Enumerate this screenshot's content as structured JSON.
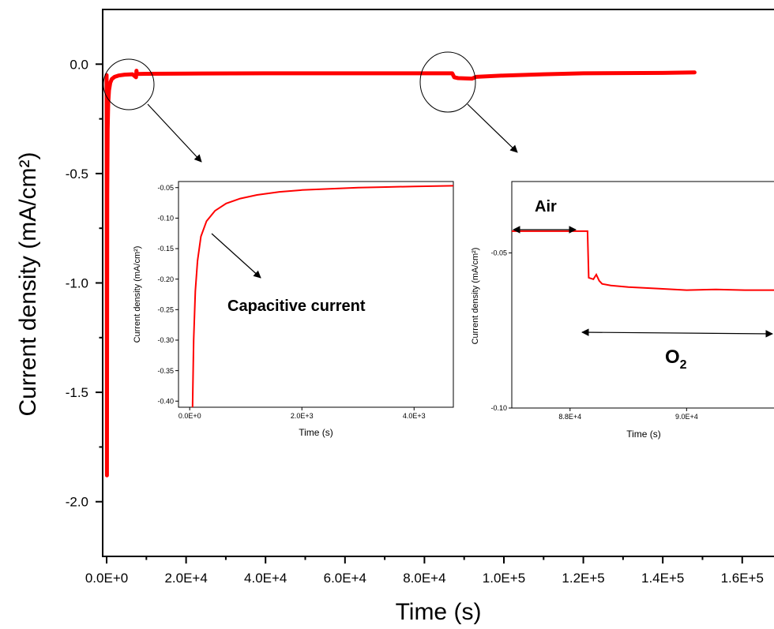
{
  "chart_data": [
    {
      "type": "line",
      "xlabel": "Time (s)",
      "ylabel": "Current density (mA/cm²)",
      "xlim": [
        -1000,
        168000
      ],
      "ylim": [
        -2.25,
        0.25
      ],
      "xticks": [
        0,
        20000,
        40000,
        60000,
        80000,
        100000,
        120000,
        140000,
        160000
      ],
      "xtick_labels": [
        "0.0E+0",
        "2.0E+4",
        "4.0E+4",
        "6.0E+4",
        "8.0E+4",
        "1.0E+5",
        "1.2E+5",
        "1.4E+5",
        "1.6E+5"
      ],
      "yticks": [
        0,
        -0.5,
        -1,
        -1.5,
        -2
      ],
      "ytick_labels": [
        "0.0",
        "-0.5",
        "-1.0",
        "-1.5",
        "-2.0"
      ],
      "grid": false,
      "color": "#ff0000",
      "series": [
        {
          "x": [
            0,
            80,
            160,
            250,
            400,
            600,
            900,
            1300,
            2000,
            3000,
            4500,
            6500,
            7400,
            7500,
            7600,
            10000,
            20000,
            40000,
            60000,
            87000,
            87500,
            88500,
            92000,
            93000,
            100000,
            110000,
            120000,
            140000,
            148000
          ],
          "y": [
            -0.05,
            -1.88,
            -0.6,
            -0.3,
            -0.18,
            -0.12,
            -0.085,
            -0.068,
            -0.058,
            -0.052,
            -0.048,
            -0.046,
            -0.06,
            -0.03,
            -0.045,
            -0.044,
            -0.043,
            -0.042,
            -0.042,
            -0.042,
            -0.06,
            -0.064,
            -0.066,
            -0.058,
            -0.052,
            -0.046,
            -0.042,
            -0.04,
            -0.038
          ]
        }
      ],
      "annotations": [
        "circle near start (x≈4500, y≈-0.1)",
        "circle at gas switch (x≈88000, y≈-0.07)"
      ]
    },
    {
      "type": "line",
      "xlabel": "Time (s)",
      "ylabel": "Current density (mA/cm²)",
      "xlim": [
        -200,
        4700
      ],
      "ylim": [
        -0.41,
        -0.04
      ],
      "xticks": [
        0,
        2000,
        4000
      ],
      "xtick_labels": [
        "0.0E+0",
        "2.0E+3",
        "4.0E+3"
      ],
      "yticks": [
        -0.05,
        -0.1,
        -0.15,
        -0.2,
        -0.25,
        -0.3,
        -0.35,
        -0.4
      ],
      "ytick_labels": [
        "-0.05",
        "-0.10",
        "-0.15",
        "-0.20",
        "-0.25",
        "-0.30",
        "-0.35",
        "-0.40"
      ],
      "color": "#ff0000",
      "series": [
        {
          "x": [
            50,
            70,
            100,
            140,
            200,
            300,
            450,
            650,
            900,
            1200,
            1600,
            2000,
            2500,
            3000,
            3500,
            4000,
            4700
          ],
          "y": [
            -0.41,
            -0.3,
            -0.22,
            -0.17,
            -0.13,
            -0.105,
            -0.088,
            -0.076,
            -0.068,
            -0.062,
            -0.057,
            -0.054,
            -0.052,
            -0.05,
            -0.049,
            -0.048,
            -0.047
          ]
        }
      ],
      "annotation_text": "Capacitive current"
    },
    {
      "type": "line",
      "xlabel": "Time (s)",
      "ylabel": "Current density (mA/cm²)",
      "xlim": [
        87000,
        91500
      ],
      "ylim": [
        -0.1,
        -0.027
      ],
      "xticks": [
        88000,
        90000
      ],
      "xtick_labels": [
        "8.8E+4",
        "9.0E+4"
      ],
      "yticks": [
        -0.05,
        -0.1
      ],
      "ytick_labels": [
        "-0.05",
        "-0.10"
      ],
      "color": "#ff0000",
      "series": [
        {
          "x": [
            87000,
            87500,
            88000,
            88300,
            88320,
            88400,
            88450,
            88500,
            88550,
            88700,
            89000,
            89500,
            90000,
            90500,
            91000,
            91500
          ],
          "y": [
            -0.043,
            -0.043,
            -0.043,
            -0.043,
            -0.058,
            -0.0585,
            -0.057,
            -0.059,
            -0.06,
            -0.0605,
            -0.061,
            -0.0615,
            -0.062,
            -0.0618,
            -0.062,
            -0.062
          ]
        }
      ],
      "air_label": "Air",
      "o2_label": "O",
      "o2_subscript": "2"
    }
  ]
}
